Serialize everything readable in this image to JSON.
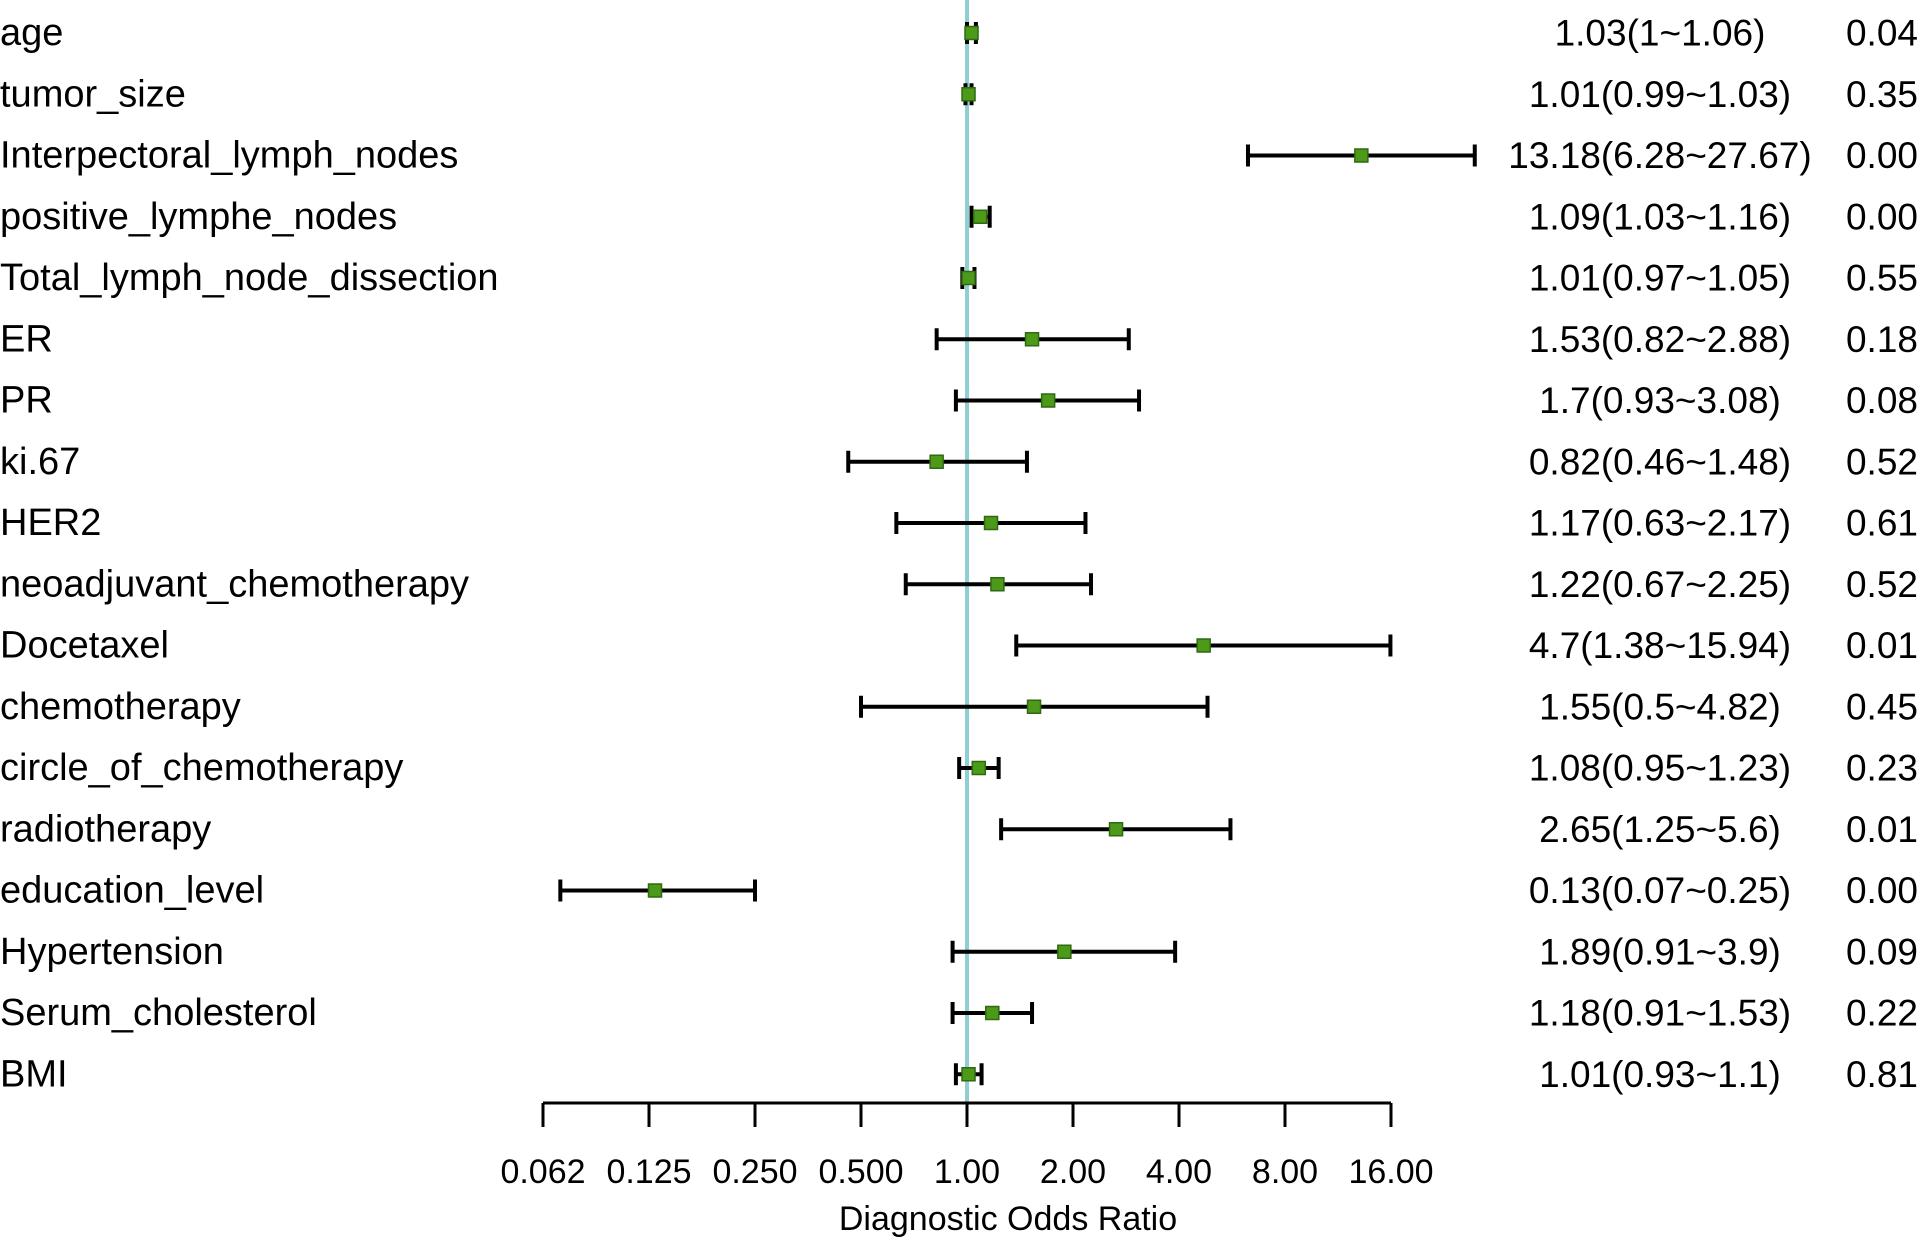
{
  "chart_data": {
    "type": "forest",
    "xlabel": "Diagnostic Odds Ratio",
    "x_scale": "log2",
    "xlim": [
      0.0625,
      16
    ],
    "reference_line": 1,
    "tick_values": [
      0.0625,
      0.125,
      0.25,
      0.5,
      1,
      2,
      4,
      8,
      16
    ],
    "tick_labels": [
      "0.062",
      "0.125",
      "0.250",
      "0.500",
      "1.00",
      "2.00",
      "4.00",
      "8.00",
      "16.00"
    ],
    "colors": {
      "marker": "#4d9a1a",
      "marker_edge": "#2f6a10",
      "whisker": "#000000",
      "reference_line": "#8ecfd4",
      "axis": "#000000"
    },
    "rows": [
      {
        "label": "age",
        "or": 1.03,
        "lower": 1.0,
        "upper": 1.06,
        "or_text": "1.03(1~1.06)",
        "p": "0.04"
      },
      {
        "label": "tumor_size",
        "or": 1.01,
        "lower": 0.99,
        "upper": 1.03,
        "or_text": "1.01(0.99~1.03)",
        "p": "0.35"
      },
      {
        "label": "Interpectoral_lymph_nodes",
        "or": 13.18,
        "lower": 6.28,
        "upper": 27.67,
        "or_text": "13.18(6.28~27.67)",
        "p": "0.00"
      },
      {
        "label": "positive_lymphe_nodes",
        "or": 1.09,
        "lower": 1.03,
        "upper": 1.16,
        "or_text": "1.09(1.03~1.16)",
        "p": "0.00"
      },
      {
        "label": "Total_lymph_node_dissection",
        "or": 1.01,
        "lower": 0.97,
        "upper": 1.05,
        "or_text": "1.01(0.97~1.05)",
        "p": "0.55"
      },
      {
        "label": "ER",
        "or": 1.53,
        "lower": 0.82,
        "upper": 2.88,
        "or_text": "1.53(0.82~2.88)",
        "p": "0.18"
      },
      {
        "label": "PR",
        "or": 1.7,
        "lower": 0.93,
        "upper": 3.08,
        "or_text": "1.7(0.93~3.08)",
        "p": "0.08"
      },
      {
        "label": "ki.67",
        "or": 0.82,
        "lower": 0.46,
        "upper": 1.48,
        "or_text": "0.82(0.46~1.48)",
        "p": "0.52"
      },
      {
        "label": "HER2",
        "or": 1.17,
        "lower": 0.63,
        "upper": 2.17,
        "or_text": "1.17(0.63~2.17)",
        "p": "0.61"
      },
      {
        "label": "neoadjuvant_chemotherapy",
        "or": 1.22,
        "lower": 0.67,
        "upper": 2.25,
        "or_text": "1.22(0.67~2.25)",
        "p": "0.52"
      },
      {
        "label": "Docetaxel",
        "or": 4.7,
        "lower": 1.38,
        "upper": 15.94,
        "or_text": "4.7(1.38~15.94)",
        "p": "0.01"
      },
      {
        "label": "chemotherapy",
        "or": 1.55,
        "lower": 0.5,
        "upper": 4.82,
        "or_text": "1.55(0.5~4.82)",
        "p": "0.45"
      },
      {
        "label": "circle_of_chemotherapy",
        "or": 1.08,
        "lower": 0.95,
        "upper": 1.23,
        "or_text": "1.08(0.95~1.23)",
        "p": "0.23"
      },
      {
        "label": "radiotherapy",
        "or": 2.65,
        "lower": 1.25,
        "upper": 5.6,
        "or_text": "2.65(1.25~5.6)",
        "p": "0.01"
      },
      {
        "label": "education_level",
        "or": 0.13,
        "lower": 0.07,
        "upper": 0.25,
        "or_text": "0.13(0.07~0.25)",
        "p": "0.00"
      },
      {
        "label": "Hypertension",
        "or": 1.89,
        "lower": 0.91,
        "upper": 3.9,
        "or_text": "1.89(0.91~3.9)",
        "p": "0.09"
      },
      {
        "label": "Serum_cholesterol",
        "or": 1.18,
        "lower": 0.91,
        "upper": 1.53,
        "or_text": "1.18(0.91~1.53)",
        "p": "0.22"
      },
      {
        "label": "BMI",
        "or": 1.01,
        "lower": 0.93,
        "upper": 1.1,
        "or_text": "1.01(0.93~1.1)",
        "p": "0.81"
      }
    ]
  }
}
